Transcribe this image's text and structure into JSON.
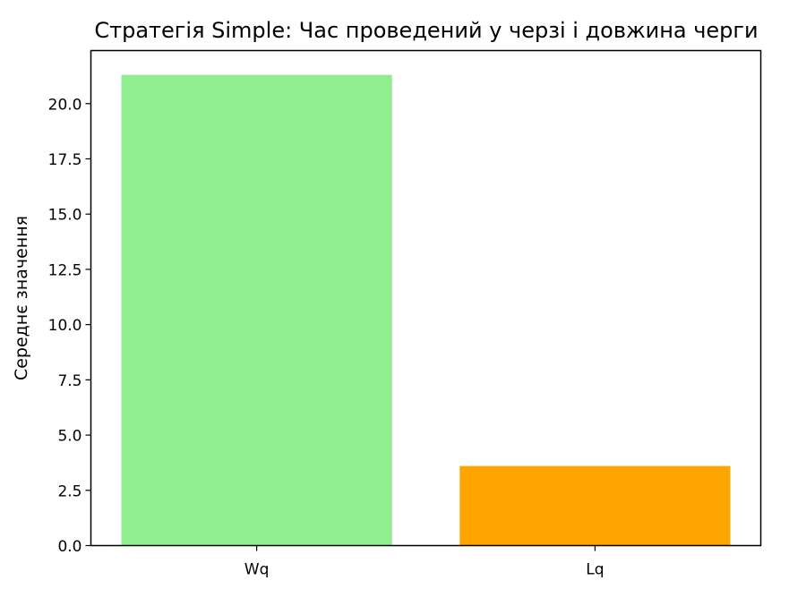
{
  "chart_data": {
    "type": "bar",
    "title": "Стратегія Simple: Час проведений у черзі і довжина черги",
    "xlabel": "",
    "ylabel": "Середнє значення",
    "categories": [
      "Wq",
      "Lq"
    ],
    "values": [
      21.3,
      3.6
    ],
    "colors": [
      "#90ee90",
      "#ffa500"
    ],
    "ylim": [
      0,
      22.4
    ],
    "yticks": [
      0.0,
      2.5,
      5.0,
      7.5,
      10.0,
      12.5,
      15.0,
      17.5,
      20.0
    ],
    "ytick_labels": [
      "0.0",
      "2.5",
      "5.0",
      "7.5",
      "10.0",
      "12.5",
      "15.0",
      "17.5",
      "20.0"
    ],
    "grid": false,
    "legend": "none"
  }
}
